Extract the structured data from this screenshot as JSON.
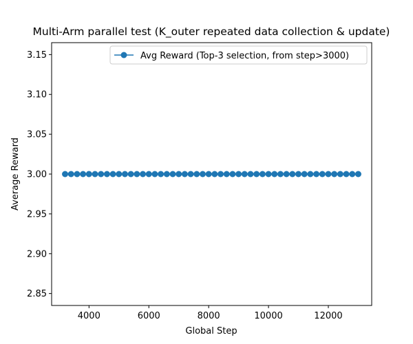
{
  "chart_data": {
    "type": "line",
    "title": "Multi-Arm parallel test (K_outer repeated data collection & update)",
    "xlabel": "Global Step",
    "ylabel": "Average Reward",
    "xlim": [
      2750,
      13450
    ],
    "ylim": [
      2.835,
      3.165
    ],
    "xticks": [
      4000,
      6000,
      8000,
      10000,
      12000
    ],
    "yticks": [
      2.85,
      2.9,
      2.95,
      3.0,
      3.05,
      3.1,
      3.15
    ],
    "ytick_labels": [
      "2.85",
      "2.90",
      "2.95",
      "3.00",
      "3.05",
      "3.10",
      "3.15"
    ],
    "grid": false,
    "legend_position": "top-right",
    "series": [
      {
        "name": "Avg Reward (Top-3 selection, from step>3000)",
        "color": "#1f77b4",
        "marker": "circle",
        "x": [
          3200,
          3400,
          3600,
          3800,
          4000,
          4200,
          4400,
          4600,
          4800,
          5000,
          5200,
          5400,
          5600,
          5800,
          6000,
          6200,
          6400,
          6600,
          6800,
          7000,
          7200,
          7400,
          7600,
          7800,
          8000,
          8200,
          8400,
          8600,
          8800,
          9000,
          9200,
          9400,
          9600,
          9800,
          10000,
          10200,
          10400,
          10600,
          10800,
          11000,
          11200,
          11400,
          11600,
          11800,
          12000,
          12200,
          12400,
          12600,
          12800,
          13000
        ],
        "y": [
          3.0,
          3.0,
          3.0,
          3.0,
          3.0,
          3.0,
          3.0,
          3.0,
          3.0,
          3.0,
          3.0,
          3.0,
          3.0,
          3.0,
          3.0,
          3.0,
          3.0,
          3.0,
          3.0,
          3.0,
          3.0,
          3.0,
          3.0,
          3.0,
          3.0,
          3.0,
          3.0,
          3.0,
          3.0,
          3.0,
          3.0,
          3.0,
          3.0,
          3.0,
          3.0,
          3.0,
          3.0,
          3.0,
          3.0,
          3.0,
          3.0,
          3.0,
          3.0,
          3.0,
          3.0,
          3.0,
          3.0,
          3.0,
          3.0,
          3.0
        ]
      }
    ]
  }
}
